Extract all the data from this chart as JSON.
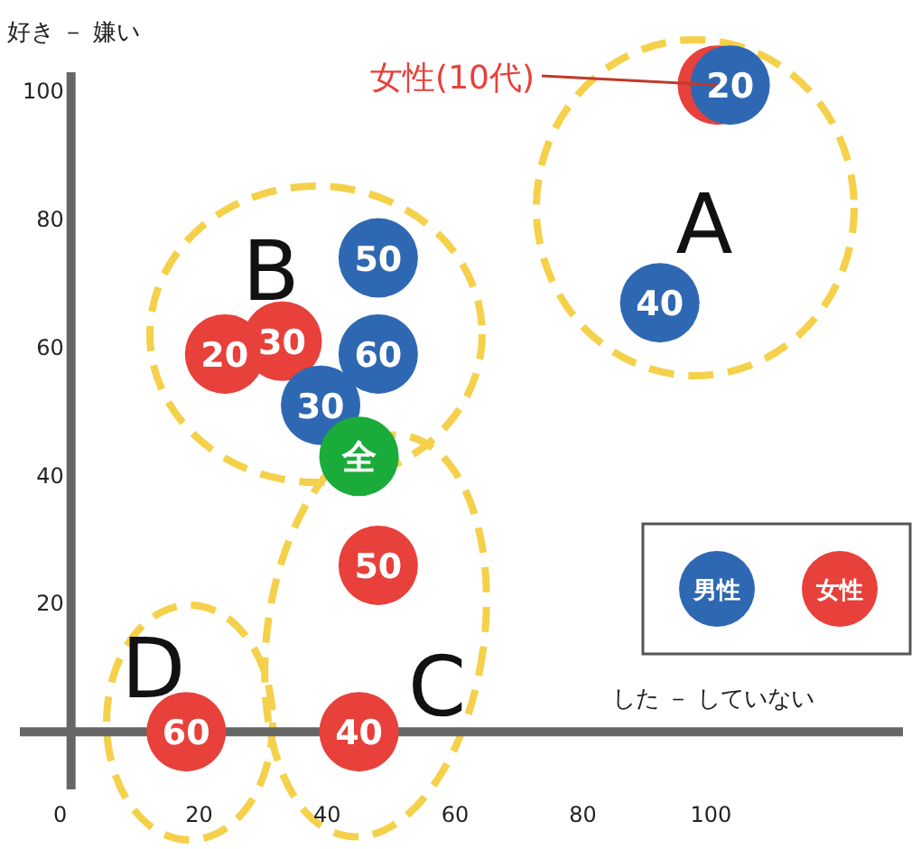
{
  "chart_data": {
    "type": "bubble",
    "xlabel": "した － していない",
    "ylabel": "好き － 嫌い",
    "xlim": [
      -8,
      130
    ],
    "ylim": [
      -9,
      103
    ],
    "xticks": [
      0,
      20,
      40,
      60,
      80,
      100
    ],
    "yticks": [
      20,
      40,
      60,
      80,
      100
    ],
    "legend": "right",
    "grid": false,
    "series": [
      {
        "name": "女性",
        "color": "#e8403a",
        "x": [
          101,
          24,
          33,
          48,
          45,
          18
        ],
        "values": [
          101,
          59,
          61,
          26,
          0,
          0
        ],
        "sizes": [
          1,
          1,
          1,
          1,
          1,
          1
        ]
      },
      {
        "name": "男性",
        "color": "#2f68b2",
        "x": [
          103,
          92,
          48,
          48,
          39
        ],
        "values": [
          101,
          67,
          74,
          59,
          51
        ],
        "sizes": [
          1,
          1,
          1,
          1,
          1
        ]
      },
      {
        "color": "#1aab3a",
        "x": [
          45
        ],
        "values": [
          43
        ],
        "sizes": [
          1
        ]
      }
    ],
    "annotations": [
      {
        "text": "女性(10代)",
        "x": 101,
        "y": 101
      },
      "A",
      "B",
      "C",
      "D",
      {
        "text": "20",
        "x": 24,
        "y": 59
      },
      {
        "text": "30",
        "x": 33,
        "y": 61
      },
      {
        "text": "50",
        "x": 48,
        "y": 26
      },
      {
        "text": "40",
        "x": 45,
        "y": 0
      },
      {
        "text": "60",
        "x": 18,
        "y": 0
      },
      {
        "text": "20",
        "x": 103,
        "y": 101
      },
      {
        "text": "40",
        "x": 92,
        "y": 67
      },
      {
        "text": "50",
        "x": 48,
        "y": 74
      },
      {
        "text": "60",
        "x": 48,
        "y": 59
      },
      {
        "text": "30",
        "x": 39,
        "y": 51
      },
      {
        "text": "全",
        "x": 45,
        "y": 43
      }
    ]
  }
}
